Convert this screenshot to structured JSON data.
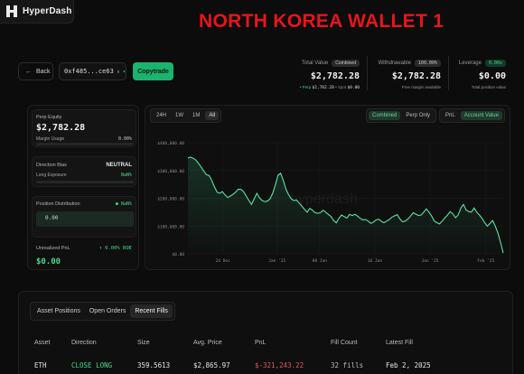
{
  "app": {
    "name": "HyperDash"
  },
  "overlay_title": "NORTH KOREA WALLET 1",
  "toolbar": {
    "back_label": "Back",
    "address": "0xf485...ce63",
    "copytrade_label": "Copytrade"
  },
  "stats": {
    "total_value": {
      "label": "Total Value",
      "tag": "Combined",
      "value": "$2,782.28",
      "perp_label": "• Perp",
      "perp_value": "$2,782.28",
      "spot_label": "• Spot",
      "spot_value": "$0.00"
    },
    "withdrawable": {
      "label": "Withdrawable",
      "tag": "100.00%",
      "value": "$2,782.28",
      "sub": "Free margin available"
    },
    "leverage": {
      "label": "Leverage",
      "tag": "0.00x",
      "value": "$0.00",
      "sub": "Total position value"
    }
  },
  "left_panel": {
    "perp_equity_label": "Perp Equity",
    "perp_equity_value": "$2,782.28",
    "margin_usage_label": "Margin Usage",
    "margin_usage_value": "0.00%",
    "margin_usage_fraction": 0.0,
    "direction_bias_label": "Direction Bias",
    "direction_bias_value": "NEUTRAL",
    "long_exposure_label": "Long Exposure",
    "long_exposure_value": "NaN%",
    "position_distribution_label": "Position Distribution",
    "position_distribution_value": "NaN%",
    "position_amount": "0.00",
    "unrealized_pnl_label": "Unrealized PnL",
    "unrealized_pnl_roe": "↑ 0.00% ROE",
    "unrealized_pnl_value": "$0.00"
  },
  "chart_controls": {
    "ranges": [
      "24H",
      "1W",
      "1M",
      "All"
    ],
    "active_range": "All",
    "scopes": [
      "Combined",
      "Perp Only"
    ],
    "active_scope": "Combined",
    "metrics": [
      "PnL",
      "Account Value"
    ],
    "active_metric": "Account Value",
    "watermark": "hyperdash"
  },
  "chart_data": {
    "type": "area",
    "title": "",
    "xlabel": "",
    "ylabel": "",
    "y_ticks": [
      "$400,000.00",
      "$300,000.00",
      "$200,000.00",
      "$100,000.00",
      "$0.00"
    ],
    "x_ticks": [
      "24 Dec",
      "Jan '25",
      "08 Jan",
      "16 Jan",
      "Jan '25",
      "Feb '25"
    ],
    "ylim": [
      0,
      400000
    ],
    "grid": true,
    "series": [
      {
        "values": [
          345000,
          348000,
          344000,
          338000,
          326000,
          312000,
          298000,
          285000,
          282000,
          264000,
          242000,
          222000,
          218000,
          224000,
          212000,
          203000,
          208000,
          214000,
          222000,
          233000,
          232000,
          224000,
          208000,
          192000,
          178000,
          198000,
          218000,
          202000,
          192000,
          188000,
          190000,
          198000,
          218000,
          248000,
          283000,
          290000,
          264000,
          233000,
          213000,
          198000,
          192000,
          194000,
          183000,
          172000,
          160000,
          150000,
          164000,
          157000,
          148000,
          146000,
          148000,
          157000,
          150000,
          142000,
          134000,
          120000,
          112000,
          128000,
          140000,
          134000,
          129000,
          142000,
          138000,
          142000,
          136000,
          128000,
          122000,
          124000,
          118000,
          110000,
          114000,
          122000,
          125000,
          117000,
          112000,
          118000,
          124000,
          132000,
          137000,
          141000,
          126000,
          115000,
          118000,
          125000,
          136000,
          148000,
          143000,
          138000,
          140000,
          150000,
          162000,
          150000,
          136000,
          118000,
          112000,
          108000,
          118000,
          130000,
          140000,
          152000,
          144000,
          130000,
          140000,
          165000,
          178000,
          158000,
          152000,
          150000,
          165000,
          150000,
          140000,
          128000,
          112000,
          100000,
          110000,
          120000,
          100000,
          75000,
          40000,
          3000
        ]
      }
    ]
  },
  "bottom": {
    "tabs": [
      "Asset Positions",
      "Open Orders",
      "Recent Fills"
    ],
    "active_tab": "Recent Fills",
    "columns": [
      "Asset",
      "Direction",
      "Size",
      "Avg. Price",
      "PnL",
      "Fill Count",
      "Latest Fill"
    ],
    "rows": [
      [
        "ETH",
        "CLOSE LONG",
        "359.5613",
        "$2,865.97",
        "$-321,243.22",
        "32 fills",
        "Feb 2, 2025"
      ]
    ]
  },
  "colors": {
    "accent_green": "#1bb46e",
    "line_green": "#5fe0a0",
    "negative_red": "#e05a5a",
    "overlay_red": "#e8151b",
    "background": "#0c0c0c"
  }
}
